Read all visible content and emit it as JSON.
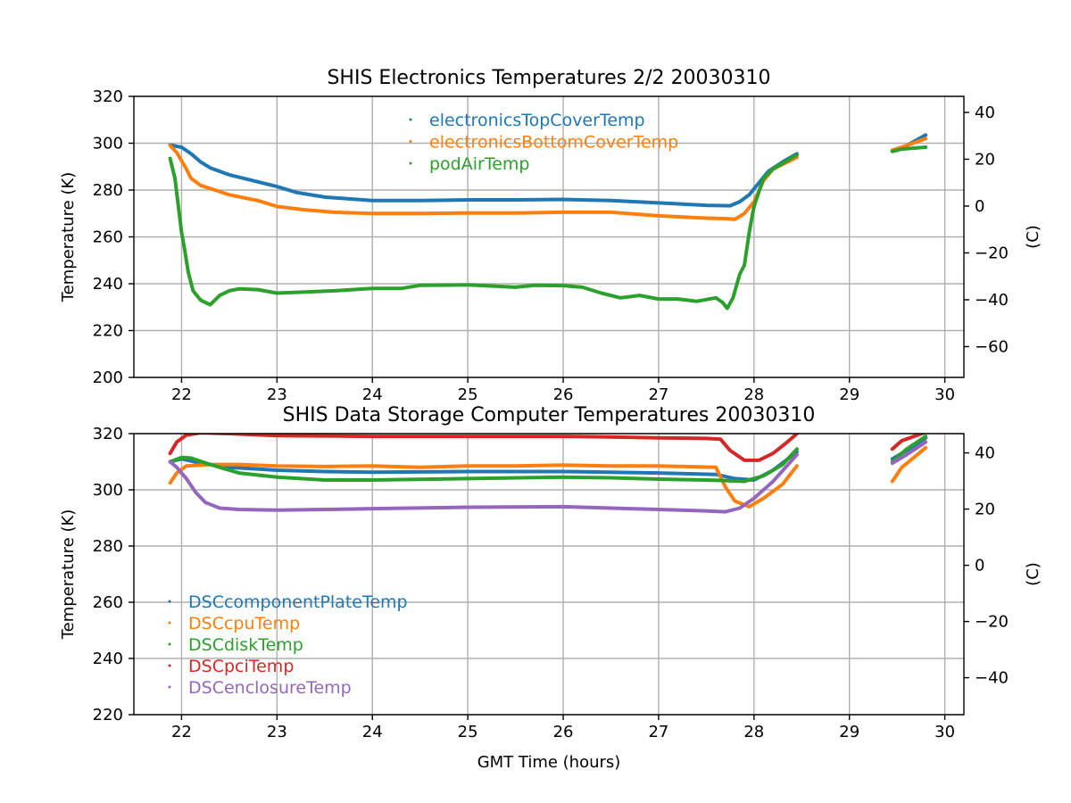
{
  "figure": {
    "xlabel": "GMT Time (hours)"
  },
  "chart_data": [
    {
      "type": "line",
      "title": "SHIS Electronics Temperatures 2/2 20030310",
      "ylabel": "Temperature (K)",
      "y2label": "(C)",
      "xlim": [
        21.5,
        30.2
      ],
      "ylim": [
        200,
        320
      ],
      "y2lim": [
        -73.15,
        46.85
      ],
      "xticks": [
        22,
        23,
        24,
        25,
        26,
        27,
        28,
        29,
        30
      ],
      "yticks": [
        200,
        220,
        240,
        260,
        280,
        300,
        320
      ],
      "y2ticks": [
        -60,
        -40,
        -20,
        0,
        20,
        40
      ],
      "grid": true,
      "legend_position": "top-center",
      "series": [
        {
          "name": "electronicsTopCoverTemp",
          "color": "#1f77b4",
          "segments": [
            [
              [
                21.88,
                299.2
              ],
              [
                22.0,
                298.3
              ],
              [
                22.1,
                295.5
              ],
              [
                22.2,
                292
              ],
              [
                22.3,
                289.5
              ],
              [
                22.5,
                286.5
              ],
              [
                22.7,
                284.5
              ],
              [
                23.0,
                281.5
              ],
              [
                23.2,
                279
              ],
              [
                23.5,
                277
              ],
              [
                24.0,
                275.5
              ],
              [
                24.5,
                275.5
              ],
              [
                25.0,
                275.8
              ],
              [
                25.5,
                275.8
              ],
              [
                26.0,
                276
              ],
              [
                26.5,
                275.5
              ],
              [
                27.0,
                274.5
              ],
              [
                27.5,
                273.5
              ],
              [
                27.75,
                273.3
              ],
              [
                27.85,
                275
              ],
              [
                27.95,
                278
              ],
              [
                28.05,
                283
              ],
              [
                28.15,
                288
              ],
              [
                28.3,
                292
              ],
              [
                28.45,
                295.5
              ]
            ],
            [
              [
                29.45,
                296.8
              ],
              [
                29.6,
                299
              ],
              [
                29.8,
                303.5
              ]
            ]
          ]
        },
        {
          "name": "electronicsBottomCoverTemp",
          "color": "#ff7f0e",
          "segments": [
            [
              [
                21.88,
                299
              ],
              [
                21.95,
                296
              ],
              [
                22.05,
                289
              ],
              [
                22.1,
                285
              ],
              [
                22.2,
                282
              ],
              [
                22.35,
                280
              ],
              [
                22.5,
                278
              ],
              [
                22.8,
                275.5
              ],
              [
                23.0,
                273
              ],
              [
                23.3,
                271.5
              ],
              [
                23.6,
                270.5
              ],
              [
                24.0,
                270
              ],
              [
                24.5,
                270
              ],
              [
                25.0,
                270.2
              ],
              [
                25.5,
                270.2
              ],
              [
                26.0,
                270.5
              ],
              [
                26.5,
                270.5
              ],
              [
                27.0,
                269
              ],
              [
                27.5,
                268
              ],
              [
                27.7,
                267.8
              ],
              [
                27.8,
                267.5
              ],
              [
                27.9,
                270
              ],
              [
                28.0,
                275
              ],
              [
                28.1,
                284
              ],
              [
                28.2,
                289
              ],
              [
                28.45,
                294
              ]
            ],
            [
              [
                29.45,
                297
              ],
              [
                29.6,
                299
              ],
              [
                29.8,
                302
              ]
            ]
          ]
        },
        {
          "name": "podAirTemp",
          "color": "#2ca02c",
          "segments": [
            [
              [
                21.88,
                293.5
              ],
              [
                21.93,
                285
              ],
              [
                21.97,
                272
              ],
              [
                22.0,
                262
              ],
              [
                22.03,
                255
              ],
              [
                22.07,
                245
              ],
              [
                22.12,
                237
              ],
              [
                22.2,
                233
              ],
              [
                22.3,
                231
              ],
              [
                22.4,
                235
              ],
              [
                22.5,
                237
              ],
              [
                22.6,
                237.8
              ],
              [
                22.8,
                237.5
              ],
              [
                23.0,
                236
              ],
              [
                23.3,
                236.5
              ],
              [
                23.6,
                237
              ],
              [
                24.0,
                238
              ],
              [
                24.3,
                238
              ],
              [
                24.5,
                239.3
              ],
              [
                25.0,
                239.5
              ],
              [
                25.5,
                238.5
              ],
              [
                25.7,
                239.3
              ],
              [
                26.0,
                239.2
              ],
              [
                26.2,
                238.5
              ],
              [
                26.4,
                236
              ],
              [
                26.6,
                234
              ],
              [
                26.8,
                235
              ],
              [
                27.0,
                233.5
              ],
              [
                27.2,
                233.5
              ],
              [
                27.4,
                232.5
              ],
              [
                27.6,
                234
              ],
              [
                27.67,
                232
              ],
              [
                27.72,
                229.5
              ],
              [
                27.78,
                234
              ],
              [
                27.85,
                244
              ],
              [
                27.9,
                248
              ],
              [
                27.95,
                262
              ],
              [
                28.0,
                273
              ],
              [
                28.1,
                285
              ],
              [
                28.2,
                289
              ],
              [
                28.45,
                295
              ]
            ],
            [
              [
                29.45,
                296.5
              ],
              [
                29.55,
                297.5
              ],
              [
                29.8,
                298.3
              ]
            ]
          ]
        }
      ]
    },
    {
      "type": "line",
      "title": "SHIS Data Storage Computer Temperatures 20030310",
      "ylabel": "Temperature (K)",
      "y2label": "(C)",
      "xlabel": "GMT Time (hours)",
      "xlim": [
        21.5,
        30.2
      ],
      "ylim": [
        220,
        320
      ],
      "y2lim": [
        -53.15,
        46.85
      ],
      "xticks": [
        22,
        23,
        24,
        25,
        26,
        27,
        28,
        29,
        30
      ],
      "yticks": [
        220,
        240,
        260,
        280,
        300,
        320
      ],
      "y2ticks": [
        -40,
        -20,
        0,
        20,
        40
      ],
      "grid": true,
      "legend_position": "bottom-left",
      "series": [
        {
          "name": "DSCcomponentPlateTemp",
          "color": "#1f77b4",
          "segments": [
            [
              [
                21.88,
                310
              ],
              [
                22.0,
                311
              ],
              [
                22.2,
                309.5
              ],
              [
                22.5,
                308
              ],
              [
                23.0,
                307
              ],
              [
                23.5,
                306.5
              ],
              [
                24.0,
                306.3
              ],
              [
                25.0,
                306.5
              ],
              [
                26.0,
                306.5
              ],
              [
                27.0,
                306
              ],
              [
                27.6,
                305.5
              ],
              [
                27.8,
                304
              ],
              [
                28.0,
                303.5
              ],
              [
                28.2,
                307
              ],
              [
                28.45,
                313.5
              ]
            ],
            [
              [
                29.45,
                311
              ],
              [
                29.6,
                314
              ],
              [
                29.8,
                318.5
              ]
            ]
          ]
        },
        {
          "name": "DSCcpuTemp",
          "color": "#ff7f0e",
          "segments": [
            [
              [
                21.88,
                302.5
              ],
              [
                21.95,
                306
              ],
              [
                22.05,
                308.5
              ],
              [
                22.3,
                309
              ],
              [
                22.6,
                309
              ],
              [
                23.0,
                308.5
              ],
              [
                23.5,
                308.3
              ],
              [
                24.0,
                308.5
              ],
              [
                24.5,
                308
              ],
              [
                25.0,
                308.5
              ],
              [
                25.5,
                308.5
              ],
              [
                26.0,
                308.8
              ],
              [
                26.5,
                308.5
              ],
              [
                27.0,
                308.5
              ],
              [
                27.6,
                308
              ],
              [
                27.7,
                301
              ],
              [
                27.8,
                296
              ],
              [
                27.95,
                294
              ],
              [
                28.1,
                297
              ],
              [
                28.3,
                302
              ],
              [
                28.45,
                308.5
              ]
            ],
            [
              [
                29.45,
                303
              ],
              [
                29.55,
                308
              ],
              [
                29.8,
                315
              ]
            ]
          ]
        },
        {
          "name": "DSCdiskTemp",
          "color": "#2ca02c",
          "segments": [
            [
              [
                21.88,
                310
              ],
              [
                22.0,
                311.5
              ],
              [
                22.1,
                311.3
              ],
              [
                22.3,
                309
              ],
              [
                22.6,
                306
              ],
              [
                23.0,
                304.5
              ],
              [
                23.5,
                303.5
              ],
              [
                24.0,
                303.5
              ],
              [
                25.0,
                304
              ],
              [
                26.0,
                304.5
              ],
              [
                26.5,
                304.3
              ],
              [
                27.0,
                303.8
              ],
              [
                27.5,
                303.5
              ],
              [
                27.7,
                303.3
              ],
              [
                27.9,
                303
              ],
              [
                28.1,
                305
              ],
              [
                28.3,
                309
              ],
              [
                28.45,
                314.5
              ]
            ],
            [
              [
                29.45,
                310
              ],
              [
                29.6,
                314.5
              ],
              [
                29.8,
                319
              ]
            ]
          ]
        },
        {
          "name": "DSCpciTemp",
          "color": "#d62728",
          "segments": [
            [
              [
                21.88,
                313
              ],
              [
                21.95,
                317
              ],
              [
                22.05,
                319.5
              ],
              [
                22.2,
                320.3
              ],
              [
                22.5,
                320
              ],
              [
                23.0,
                319.3
              ],
              [
                24.0,
                319
              ],
              [
                25.0,
                319
              ],
              [
                26.0,
                319
              ],
              [
                26.5,
                318.8
              ],
              [
                27.0,
                318.5
              ],
              [
                27.5,
                318.3
              ],
              [
                27.65,
                318
              ],
              [
                27.75,
                314
              ],
              [
                27.9,
                310.5
              ],
              [
                28.05,
                310.5
              ],
              [
                28.2,
                313
              ],
              [
                28.35,
                317
              ],
              [
                28.45,
                320
              ]
            ],
            [
              [
                29.45,
                314.5
              ],
              [
                29.55,
                317.5
              ],
              [
                29.8,
                320.5
              ]
            ]
          ]
        },
        {
          "name": "DSCenclosureTemp",
          "color": "#9467bd",
          "segments": [
            [
              [
                21.88,
                310
              ],
              [
                21.95,
                308
              ],
              [
                22.05,
                304
              ],
              [
                22.15,
                299
              ],
              [
                22.25,
                295.5
              ],
              [
                22.4,
                293.5
              ],
              [
                22.6,
                293
              ],
              [
                23.0,
                292.8
              ],
              [
                23.5,
                293
              ],
              [
                24.0,
                293.3
              ],
              [
                25.0,
                293.8
              ],
              [
                26.0,
                294
              ],
              [
                26.5,
                293.5
              ],
              [
                27.0,
                293
              ],
              [
                27.5,
                292.5
              ],
              [
                27.7,
                292.2
              ],
              [
                27.85,
                293.5
              ],
              [
                28.0,
                297
              ],
              [
                28.2,
                303
              ],
              [
                28.45,
                312.5
              ]
            ],
            [
              [
                29.45,
                309.5
              ],
              [
                29.6,
                312.5
              ],
              [
                29.8,
                317
              ]
            ]
          ]
        }
      ]
    }
  ]
}
